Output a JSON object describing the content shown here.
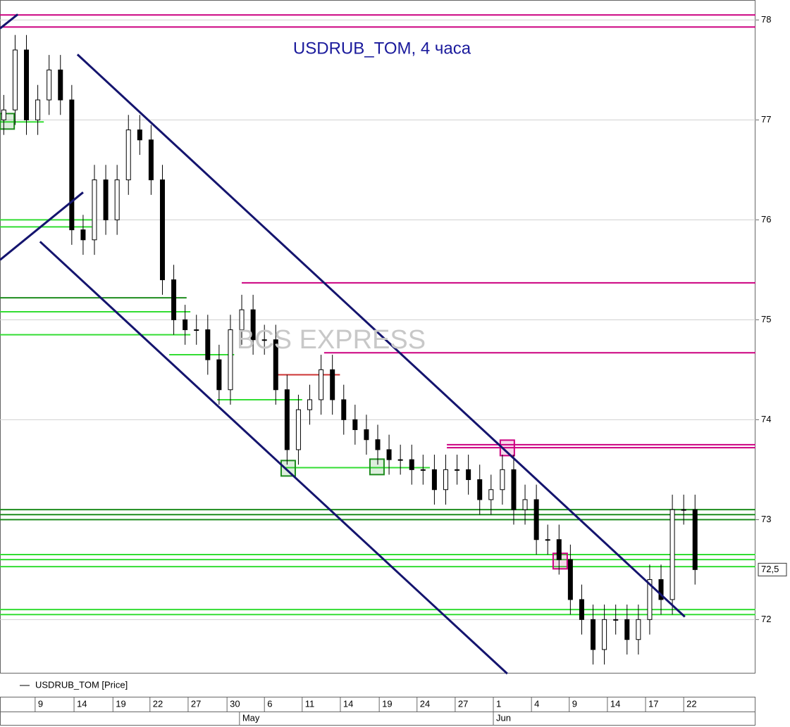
{
  "chart_data": {
    "type": "candlestick",
    "title": "USDRUB_TOM, 4 часа",
    "watermark": "BCS EXPRESS",
    "legend": "USDRUB_TOM [Price]",
    "xlim": [
      0,
      200
    ],
    "ylim": [
      71.46,
      78.2
    ],
    "yticks": [
      72,
      73,
      74,
      75,
      76,
      77,
      78
    ],
    "last_price": {
      "value": 72.5,
      "label": "72,5"
    },
    "xticks": [
      {
        "value": 9.3,
        "label": "9"
      },
      {
        "value": 19.6,
        "label": "14"
      },
      {
        "value": 29.9,
        "label": "19"
      },
      {
        "value": 39.7,
        "label": "22"
      },
      {
        "value": 49.8,
        "label": "27"
      },
      {
        "value": 60.1,
        "label": "30"
      },
      {
        "value": 70,
        "label": "6"
      },
      {
        "value": 80,
        "label": "11"
      },
      {
        "value": 90.1,
        "label": "14"
      },
      {
        "value": 100.4,
        "label": "19"
      },
      {
        "value": 110.4,
        "label": "24"
      },
      {
        "value": 120.5,
        "label": "27"
      },
      {
        "value": 130.6,
        "label": "1"
      },
      {
        "value": 140.7,
        "label": "4"
      },
      {
        "value": 150.7,
        "label": "9"
      },
      {
        "value": 160.8,
        "label": "14"
      },
      {
        "value": 170.9,
        "label": "17"
      },
      {
        "value": 181,
        "label": "22"
      }
    ],
    "month_labels": [
      {
        "value": 63.4,
        "label": "May"
      },
      {
        "value": 130.6,
        "label": "Jun"
      }
    ],
    "grid": true,
    "series": [
      {
        "name": "USDRUB_TOM",
        "color": "#000000",
        "x": [
          1,
          4,
          7,
          10,
          13,
          16,
          19,
          22,
          25,
          28,
          31,
          34,
          37,
          40,
          43,
          46,
          49,
          52,
          55,
          58,
          61,
          64,
          67,
          70,
          73,
          76,
          79,
          82,
          85,
          88,
          91,
          94,
          97,
          100,
          103,
          106,
          109,
          112,
          115,
          118,
          121,
          124,
          127,
          130,
          133,
          136,
          139,
          142,
          145,
          148,
          151,
          154,
          157,
          160,
          163,
          166,
          169,
          172,
          175,
          178,
          181,
          184
        ],
        "open": [
          77.0,
          77.1,
          77.7,
          77.0,
          77.2,
          77.5,
          77.2,
          75.9,
          75.8,
          76.4,
          76.0,
          76.4,
          76.9,
          76.8,
          76.4,
          75.4,
          75.0,
          74.9,
          74.9,
          74.6,
          74.3,
          74.9,
          75.1,
          74.8,
          74.8,
          74.3,
          73.7,
          74.1,
          74.2,
          74.5,
          74.2,
          74.0,
          73.9,
          73.8,
          73.7,
          73.6,
          73.6,
          73.5,
          73.5,
          73.3,
          73.5,
          73.5,
          73.4,
          73.2,
          73.3,
          73.5,
          73.1,
          73.2,
          72.8,
          72.8,
          72.6,
          72.2,
          72.0,
          71.7,
          72.0,
          72.0,
          71.8,
          72.0,
          72.4,
          72.2,
          73.1,
          73.1
        ],
        "high": [
          77.25,
          77.85,
          77.85,
          77.35,
          77.65,
          77.65,
          77.35,
          76.05,
          76.55,
          76.55,
          76.55,
          77.05,
          77.05,
          76.95,
          76.55,
          75.55,
          75.15,
          75.05,
          75.05,
          74.75,
          75.05,
          75.25,
          75.25,
          74.95,
          74.95,
          74.45,
          74.25,
          74.35,
          74.65,
          74.65,
          74.35,
          74.15,
          74.05,
          73.95,
          73.85,
          73.75,
          73.75,
          73.65,
          73.65,
          73.65,
          73.65,
          73.65,
          73.55,
          73.45,
          73.65,
          73.65,
          73.35,
          73.35,
          72.95,
          72.95,
          72.75,
          72.35,
          72.15,
          72.15,
          72.15,
          72.15,
          72.15,
          72.55,
          72.55,
          73.25,
          73.25,
          73.25
        ],
        "low": [
          76.85,
          76.95,
          76.85,
          76.85,
          77.05,
          77.05,
          75.75,
          75.65,
          75.65,
          75.85,
          75.85,
          76.25,
          76.65,
          76.25,
          75.25,
          74.85,
          74.75,
          74.75,
          74.45,
          74.15,
          74.15,
          74.75,
          74.65,
          74.65,
          74.15,
          73.55,
          73.55,
          73.95,
          74.05,
          74.05,
          73.85,
          73.75,
          73.65,
          73.55,
          73.45,
          73.45,
          73.35,
          73.35,
          73.15,
          73.15,
          73.35,
          73.25,
          73.05,
          73.05,
          73.15,
          72.95,
          72.95,
          72.65,
          72.65,
          72.45,
          72.05,
          71.85,
          71.55,
          71.55,
          71.85,
          71.65,
          71.65,
          71.85,
          72.05,
          72.05,
          72.95,
          72.35
        ],
        "close": [
          77.1,
          77.7,
          77.0,
          77.2,
          77.5,
          77.2,
          75.9,
          75.8,
          76.4,
          76.0,
          76.4,
          76.9,
          76.8,
          76.4,
          75.4,
          75.0,
          74.9,
          74.9,
          74.6,
          74.3,
          74.9,
          75.1,
          74.8,
          74.8,
          74.3,
          73.7,
          74.1,
          74.2,
          74.5,
          74.2,
          74.0,
          73.9,
          73.8,
          73.7,
          73.6,
          73.6,
          73.5,
          73.5,
          73.3,
          73.5,
          73.5,
          73.4,
          73.2,
          73.3,
          73.5,
          73.1,
          73.2,
          72.8,
          72.8,
          72.6,
          72.2,
          72.0,
          71.7,
          72.0,
          72.0,
          71.8,
          72.0,
          72.4,
          72.2,
          73.1,
          73.1,
          72.5
        ]
      }
    ],
    "levels": [
      {
        "value": 78.05,
        "from": 0,
        "to": 200,
        "color": "#cc0080"
      },
      {
        "value": 77.93,
        "from": 0,
        "to": 200,
        "color": "#cc0080"
      },
      {
        "value": 75.37,
        "from": 64,
        "to": 200,
        "color": "#cc0080"
      },
      {
        "value": 74.67,
        "from": 85.8,
        "to": 200,
        "color": "#cc0080"
      },
      {
        "value": 73.75,
        "from": 118.3,
        "to": 200,
        "color": "#cc0080"
      },
      {
        "value": 73.72,
        "from": 118.3,
        "to": 200,
        "color": "#cc0080"
      },
      {
        "value": 73.1,
        "from": 0,
        "to": 200,
        "color": "#1e8c1e"
      },
      {
        "value": 73.05,
        "from": 0,
        "to": 200,
        "color": "#1e8c1e"
      },
      {
        "value": 73.0,
        "from": 0,
        "to": 200,
        "color": "#1e8c1e"
      },
      {
        "value": 72.65,
        "from": 0,
        "to": 200,
        "color": "#33dd33"
      },
      {
        "value": 72.6,
        "from": 0,
        "to": 200,
        "color": "#33dd33"
      },
      {
        "value": 72.53,
        "from": 0,
        "to": 200,
        "color": "#33dd33"
      },
      {
        "value": 72.1,
        "from": 0,
        "to": 200,
        "color": "#33dd33"
      },
      {
        "value": 72.05,
        "from": 0,
        "to": 200,
        "color": "#33dd33"
      },
      {
        "value": 76.0,
        "from": 0,
        "to": 24.3,
        "color": "#33dd33"
      },
      {
        "value": 75.93,
        "from": 0,
        "to": 24.3,
        "color": "#33dd33"
      },
      {
        "value": 75.22,
        "from": 0,
        "to": 49.4,
        "color": "#1e8c1e"
      },
      {
        "value": 75.08,
        "from": 0,
        "to": 50.4,
        "color": "#33dd33"
      },
      {
        "value": 74.85,
        "from": 0,
        "to": 50.4,
        "color": "#33dd33"
      },
      {
        "value": 74.65,
        "from": 44.8,
        "to": 62,
        "color": "#33dd33"
      },
      {
        "value": 74.2,
        "from": 57.5,
        "to": 80,
        "color": "#33dd33"
      },
      {
        "value": 73.52,
        "from": 75.6,
        "to": 113.8,
        "color": "#33dd33"
      },
      {
        "value": 76.98,
        "from": 0,
        "to": 11.6,
        "color": "#33dd33"
      },
      {
        "value": 74.45,
        "from": 72.8,
        "to": 90,
        "color": "#cc3333"
      }
    ],
    "trendlines": [
      {
        "x": [
          20.5,
          181.3
        ],
        "y": [
          77.655,
          72.028
        ]
      },
      {
        "x": [
          10.6,
          134.3
        ],
        "y": [
          75.782,
          71.458
        ]
      },
      {
        "x": [
          0,
          22
        ],
        "y": [
          75.599,
          76.275
        ]
      },
      {
        "x": [
          0,
          4.7
        ],
        "y": [
          77.915,
          78.056
        ]
      }
    ],
    "boxes": [
      {
        "x": 76.3,
        "y": 73.514,
        "color": "#1e8c1e"
      },
      {
        "x": 99.8,
        "y": 73.528,
        "color": "#1e8c1e"
      },
      {
        "x": 1.9,
        "y": 76.986,
        "color": "#1e8c1e"
      },
      {
        "x": 134.3,
        "y": 73.718,
        "color": "#cc0080"
      },
      {
        "x": 148.3,
        "y": 72.585,
        "color": "#cc0080"
      }
    ]
  }
}
